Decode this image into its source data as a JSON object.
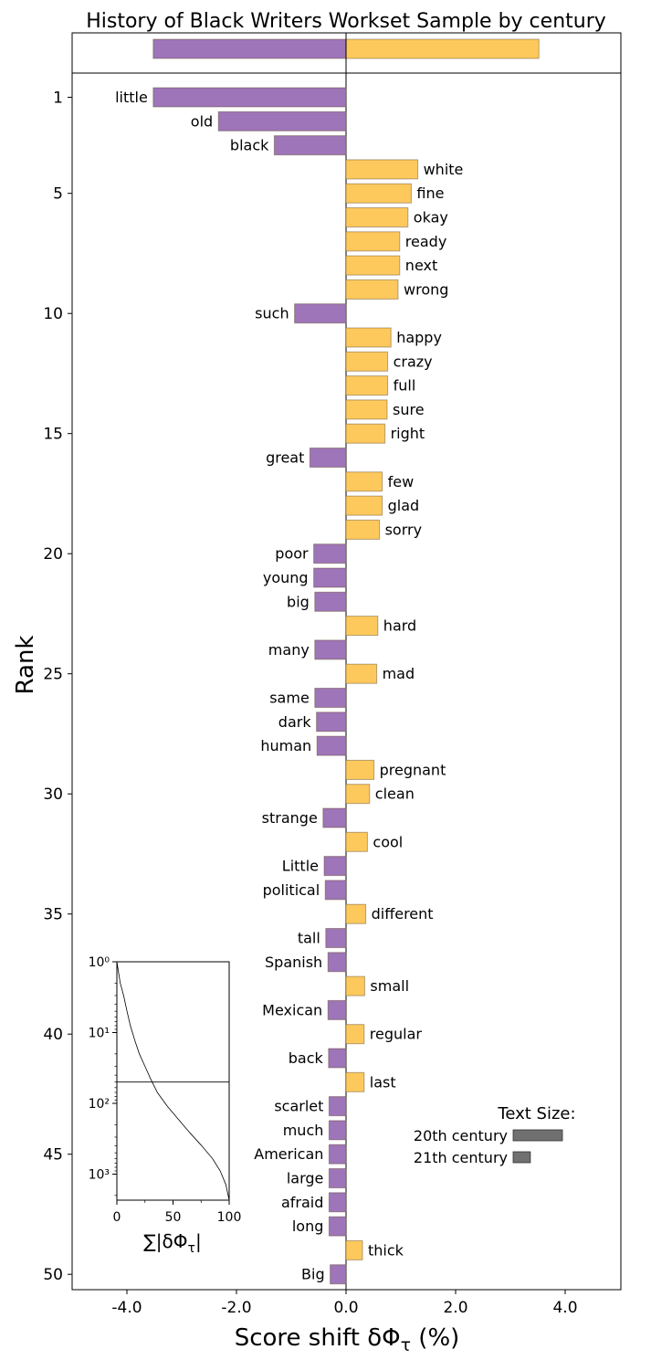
{
  "chart_data": {
    "type": "bar",
    "title": "History of Black Writers Workset Sample by century",
    "xlabel": "Score shift δΦ_τ (%)",
    "ylabel": "Rank",
    "xlim": [
      -5.0,
      5.0
    ],
    "x_ticks": [
      "-4.0",
      "-2.0",
      "0.0",
      "2.0",
      "4.0"
    ],
    "y_ticks": [
      "1",
      "5",
      "10",
      "15",
      "20",
      "25",
      "30",
      "35",
      "40",
      "45",
      "50"
    ],
    "colors": {
      "negative": "#9e75b8",
      "positive": "#fec95c"
    },
    "total_bar": {
      "negative": -3.52,
      "positive": 3.52
    },
    "words": [
      "little",
      "old",
      "black",
      "white",
      "fine",
      "okay",
      "ready",
      "next",
      "wrong",
      "such",
      "happy",
      "crazy",
      "full",
      "sure",
      "right",
      "great",
      "few",
      "glad",
      "sorry",
      "poor",
      "young",
      "big",
      "hard",
      "many",
      "mad",
      "same",
      "dark",
      "human",
      "pregnant",
      "clean",
      "strange",
      "cool",
      "Little",
      "political",
      "different",
      "tall",
      "Spanish",
      "small",
      "Mexican",
      "regular",
      "back",
      "last",
      "scarlet",
      "much",
      "American",
      "large",
      "afraid",
      "long",
      "thick",
      "Big"
    ],
    "values": [
      -3.52,
      -2.33,
      -1.31,
      1.31,
      1.19,
      1.13,
      0.98,
      0.98,
      0.95,
      -0.94,
      0.82,
      0.76,
      0.76,
      0.75,
      0.71,
      -0.66,
      0.66,
      0.66,
      0.61,
      -0.59,
      -0.59,
      -0.57,
      0.58,
      -0.57,
      0.56,
      -0.57,
      -0.54,
      -0.53,
      0.51,
      0.43,
      -0.42,
      0.39,
      -0.4,
      -0.38,
      0.36,
      -0.37,
      -0.33,
      0.34,
      -0.33,
      0.33,
      -0.32,
      0.33,
      -0.31,
      -0.31,
      -0.31,
      -0.31,
      -0.31,
      -0.31,
      0.3,
      -0.29
    ],
    "inset": {
      "xlabel": "∑|δΦ_τ|",
      "x_ticks": [
        "0",
        "50",
        "100"
      ],
      "y_ticks": [
        "10⁰",
        "10¹",
        "10²",
        "10³"
      ],
      "y_scale": "log",
      "cutoff_rank": 50,
      "curve_x": [
        0,
        3,
        6,
        9,
        12,
        16,
        20,
        25,
        30,
        36,
        45,
        55,
        65,
        75,
        85,
        92,
        97,
        100
      ],
      "curve_rank": [
        1,
        2,
        3,
        5,
        8,
        13,
        20,
        30,
        45,
        70,
        110,
        170,
        260,
        390,
        600,
        900,
        1400,
        2500
      ]
    },
    "legend": {
      "title": "Text Size:",
      "items": [
        {
          "label": "20th century",
          "relative_size": 1.0
        },
        {
          "label": "21th century",
          "relative_size": 0.35
        }
      ],
      "color": "#707070",
      "placement": "lower-right"
    }
  }
}
